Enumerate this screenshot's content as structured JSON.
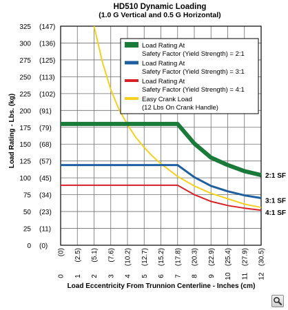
{
  "chart_data": {
    "type": "line",
    "title": "HD510 Dynamic Loading",
    "subtitle": "(1.0 G Vertical and 0.5 G Horizontal)",
    "xlabel": "Load Eccentricity From Trunnion Centerline - Inches (cm)",
    "ylabel": "Load Rating - Lbs. (kg)",
    "xlim": [
      0,
      12
    ],
    "ylim": [
      0,
      325
    ],
    "grid": true,
    "x_ticks": [
      {
        "value": 0,
        "label": "0",
        "sub": "(0)"
      },
      {
        "value": 1,
        "label": "1",
        "sub": "(2.5)"
      },
      {
        "value": 2,
        "label": "2",
        "sub": "(5.1)"
      },
      {
        "value": 3,
        "label": "3",
        "sub": "(7.6)"
      },
      {
        "value": 4,
        "label": "4",
        "sub": "(10.2)"
      },
      {
        "value": 5,
        "label": "5",
        "sub": "(12.7)"
      },
      {
        "value": 6,
        "label": "6",
        "sub": "(15.2)"
      },
      {
        "value": 7,
        "label": "7",
        "sub": "(17.8)"
      },
      {
        "value": 8,
        "label": "8",
        "sub": "(20.3)"
      },
      {
        "value": 9,
        "label": "9",
        "sub": "(22.9)"
      },
      {
        "value": 10,
        "label": "10",
        "sub": "(25.4)"
      },
      {
        "value": 11,
        "label": "11",
        "sub": "(27.9)"
      },
      {
        "value": 12,
        "label": "12",
        "sub": "(30.5)"
      }
    ],
    "y_ticks": [
      {
        "value": 0,
        "label": "0",
        "sub": "(0)"
      },
      {
        "value": 25,
        "label": "25",
        "sub": "(11)"
      },
      {
        "value": 50,
        "label": "50",
        "sub": "(23)"
      },
      {
        "value": 75,
        "label": "75",
        "sub": "(34)"
      },
      {
        "value": 100,
        "label": "100",
        "sub": "(45)"
      },
      {
        "value": 125,
        "label": "125",
        "sub": "(57)"
      },
      {
        "value": 150,
        "label": "150",
        "sub": "(68)"
      },
      {
        "value": 175,
        "label": "175",
        "sub": "(79)"
      },
      {
        "value": 200,
        "label": "200",
        "sub": "(91)"
      },
      {
        "value": 225,
        "label": "225",
        "sub": "(102)"
      },
      {
        "value": 250,
        "label": "250",
        "sub": "(113)"
      },
      {
        "value": 275,
        "label": "275",
        "sub": "(125)"
      },
      {
        "value": 300,
        "label": "300",
        "sub": "(136)"
      },
      {
        "value": 325,
        "label": "325",
        "sub": "(147)"
      }
    ],
    "legend": {
      "placement": "top-right",
      "entries": [
        {
          "series": 0,
          "lines": [
            "Load Rating At",
            "Safety Factor (Yield Strength) = 2:1"
          ]
        },
        {
          "series": 1,
          "lines": [
            "Load Rating At",
            "Safety Factor (Yield Strength) = 3:1"
          ]
        },
        {
          "series": 2,
          "lines": [
            "Load Rating At",
            "Safety Factor (Yield Strength) = 4:1"
          ]
        },
        {
          "series": 3,
          "lines": [
            "Easy Crank Load",
            "(12 Lbs On Crank Handle)"
          ]
        }
      ]
    },
    "series": [
      {
        "label": "2:1 SF",
        "color": "#1a7a3a",
        "width": 6,
        "points": [
          [
            0,
            180
          ],
          [
            7,
            180
          ],
          [
            8,
            151
          ],
          [
            9,
            130
          ],
          [
            10,
            119
          ],
          [
            11,
            110
          ],
          [
            12,
            104
          ]
        ]
      },
      {
        "label": "3:1 SF",
        "color": "#1f5fa0",
        "width": 3,
        "points": [
          [
            0,
            119
          ],
          [
            7,
            119
          ],
          [
            8,
            101
          ],
          [
            9,
            88
          ],
          [
            10,
            80
          ],
          [
            11,
            74
          ],
          [
            12,
            70
          ]
        ]
      },
      {
        "label": "4:1 SF",
        "color": "#d91f26",
        "width": 2,
        "points": [
          [
            0,
            89
          ],
          [
            7,
            89
          ],
          [
            8,
            75
          ],
          [
            9,
            65
          ],
          [
            10,
            59
          ],
          [
            11,
            55
          ],
          [
            12,
            52
          ]
        ]
      },
      {
        "label": "",
        "color": "#f7cf1d",
        "width": 2,
        "points": [
          [
            2,
            325
          ],
          [
            2.5,
            272
          ],
          [
            3,
            231
          ],
          [
            3.5,
            201
          ],
          [
            4,
            179
          ],
          [
            4.5,
            160
          ],
          [
            5,
            145
          ],
          [
            5.5,
            132
          ],
          [
            6,
            121
          ],
          [
            7,
            102
          ],
          [
            8,
            88
          ],
          [
            9,
            77
          ],
          [
            10,
            69
          ],
          [
            11,
            61
          ],
          [
            12,
            56
          ]
        ]
      }
    ]
  }
}
